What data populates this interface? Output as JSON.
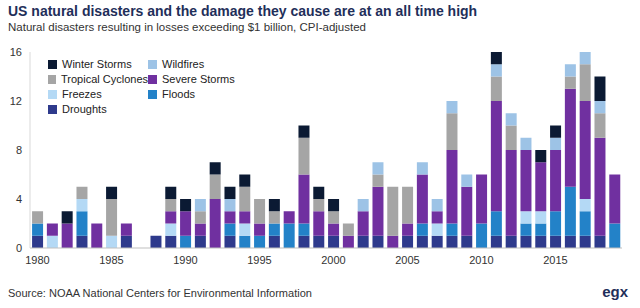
{
  "chart_data": {
    "type": "bar",
    "title": "US natural disasters and the damage they cause are at an all time high",
    "subtitle": "Natural disasters resulting in losses exceeding $1 billion, CPI-adjusted",
    "source": "Source: NOAA National Centers for Environmental Information",
    "annotations": [
      "egx"
    ],
    "stacked": true,
    "legend": "upper left",
    "grid": false,
    "categories": [
      "1980",
      null,
      null,
      null,
      null,
      "1985",
      null,
      null,
      null,
      null,
      "1990",
      null,
      null,
      null,
      null,
      "1995",
      null,
      null,
      null,
      null,
      "2000",
      null,
      null,
      null,
      null,
      "2005",
      null,
      null,
      null,
      null,
      "2010",
      null,
      null,
      null,
      null,
      "2015",
      null,
      null,
      null,
      null
    ],
    "ylim": [
      0,
      16
    ],
    "yticks": [
      0,
      4,
      8,
      12,
      16
    ],
    "series": [
      {
        "name": "Winter Storms",
        "color": "#0b1a33",
        "values": [
          0,
          0,
          1,
          0,
          0,
          1,
          0,
          0,
          0,
          1,
          1,
          0,
          1,
          1,
          1,
          0,
          1,
          0,
          1,
          1,
          1,
          0,
          0,
          0,
          0,
          0,
          0,
          0,
          0,
          0,
          0,
          1,
          0,
          0,
          1,
          1,
          0,
          0,
          2,
          0
        ]
      },
      {
        "name": "Wildfires",
        "color": "#9dc3e6",
        "values": [
          0,
          0,
          0,
          0,
          0,
          0,
          0,
          0,
          0,
          0,
          0,
          1,
          0,
          1,
          0,
          0,
          0,
          0,
          0,
          0,
          0,
          0,
          1,
          1,
          0,
          0,
          1,
          1,
          1,
          1,
          0,
          1,
          1,
          1,
          0,
          1,
          1,
          1,
          1,
          0
        ]
      },
      {
        "name": "Tropical Cyclones",
        "color": "#a5a5a5",
        "values": [
          1,
          0,
          0,
          1,
          0,
          3,
          0,
          0,
          0,
          1,
          0,
          1,
          2,
          0,
          2,
          2,
          1,
          0,
          3,
          1,
          1,
          1,
          0,
          1,
          4,
          3,
          0,
          0,
          3,
          0,
          0,
          2,
          2,
          0,
          0,
          0,
          1,
          3,
          2,
          0
        ]
      },
      {
        "name": "Severe Storms",
        "color": "#7030a0",
        "values": [
          0,
          1,
          2,
          0,
          2,
          0,
          1,
          0,
          0,
          1,
          2,
          1,
          4,
          1,
          1,
          1,
          0,
          1,
          4,
          2,
          1,
          1,
          2,
          4,
          1,
          1,
          4,
          1,
          6,
          4,
          4,
          9,
          7,
          5,
          4,
          5,
          8,
          8,
          8,
          4
        ]
      },
      {
        "name": "Freezes",
        "color": "#b4d9f5",
        "values": [
          0,
          1,
          0,
          1,
          0,
          1,
          0,
          0,
          0,
          1,
          0,
          0,
          0,
          0,
          1,
          0,
          0,
          0,
          0,
          0,
          0,
          0,
          0,
          0,
          0,
          0,
          0,
          1,
          0,
          0,
          0,
          0,
          0,
          1,
          1,
          0,
          0,
          1,
          0,
          0
        ]
      },
      {
        "name": "Floods",
        "color": "#2382c8",
        "values": [
          1,
          0,
          0,
          2,
          0,
          0,
          0,
          0,
          0,
          0,
          1,
          0,
          0,
          1,
          1,
          1,
          1,
          2,
          1,
          0,
          0,
          0,
          0,
          0,
          0,
          0,
          1,
          0,
          1,
          0,
          2,
          2,
          0,
          1,
          1,
          2,
          4,
          2,
          0,
          2
        ]
      },
      {
        "name": "Droughts",
        "color": "#2e3a8c",
        "values": [
          1,
          0,
          0,
          1,
          0,
          0,
          1,
          0,
          1,
          1,
          0,
          1,
          0,
          1,
          0,
          0,
          1,
          0,
          1,
          1,
          1,
          0,
          1,
          1,
          0,
          1,
          1,
          1,
          1,
          1,
          0,
          1,
          1,
          1,
          1,
          1,
          1,
          1,
          1,
          0
        ]
      }
    ]
  }
}
